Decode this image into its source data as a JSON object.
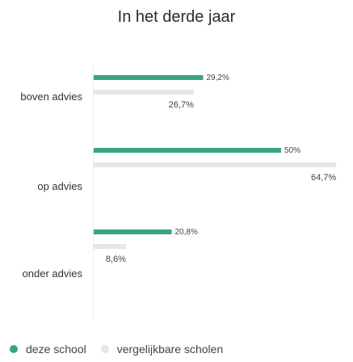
{
  "chart_data": {
    "type": "bar",
    "orientation": "horizontal",
    "title": "In het derde jaar",
    "categories": [
      "boven advies",
      "op advies",
      "onder advies"
    ],
    "series": [
      {
        "name": "deze school",
        "values": [
          29.2,
          50,
          20.8
        ],
        "value_labels": [
          "29,2%",
          "50%",
          "20,8%"
        ],
        "color": "#3aa57a"
      },
      {
        "name": "vergelijkbare scholen",
        "values": [
          26.7,
          64.7,
          8.6
        ],
        "value_labels": [
          "26,7%",
          "64,7%",
          "8,6%"
        ],
        "color": "#e6e6e6"
      }
    ],
    "xlim": [
      0,
      100
    ],
    "grid": false,
    "legend_position": "bottom-left"
  }
}
